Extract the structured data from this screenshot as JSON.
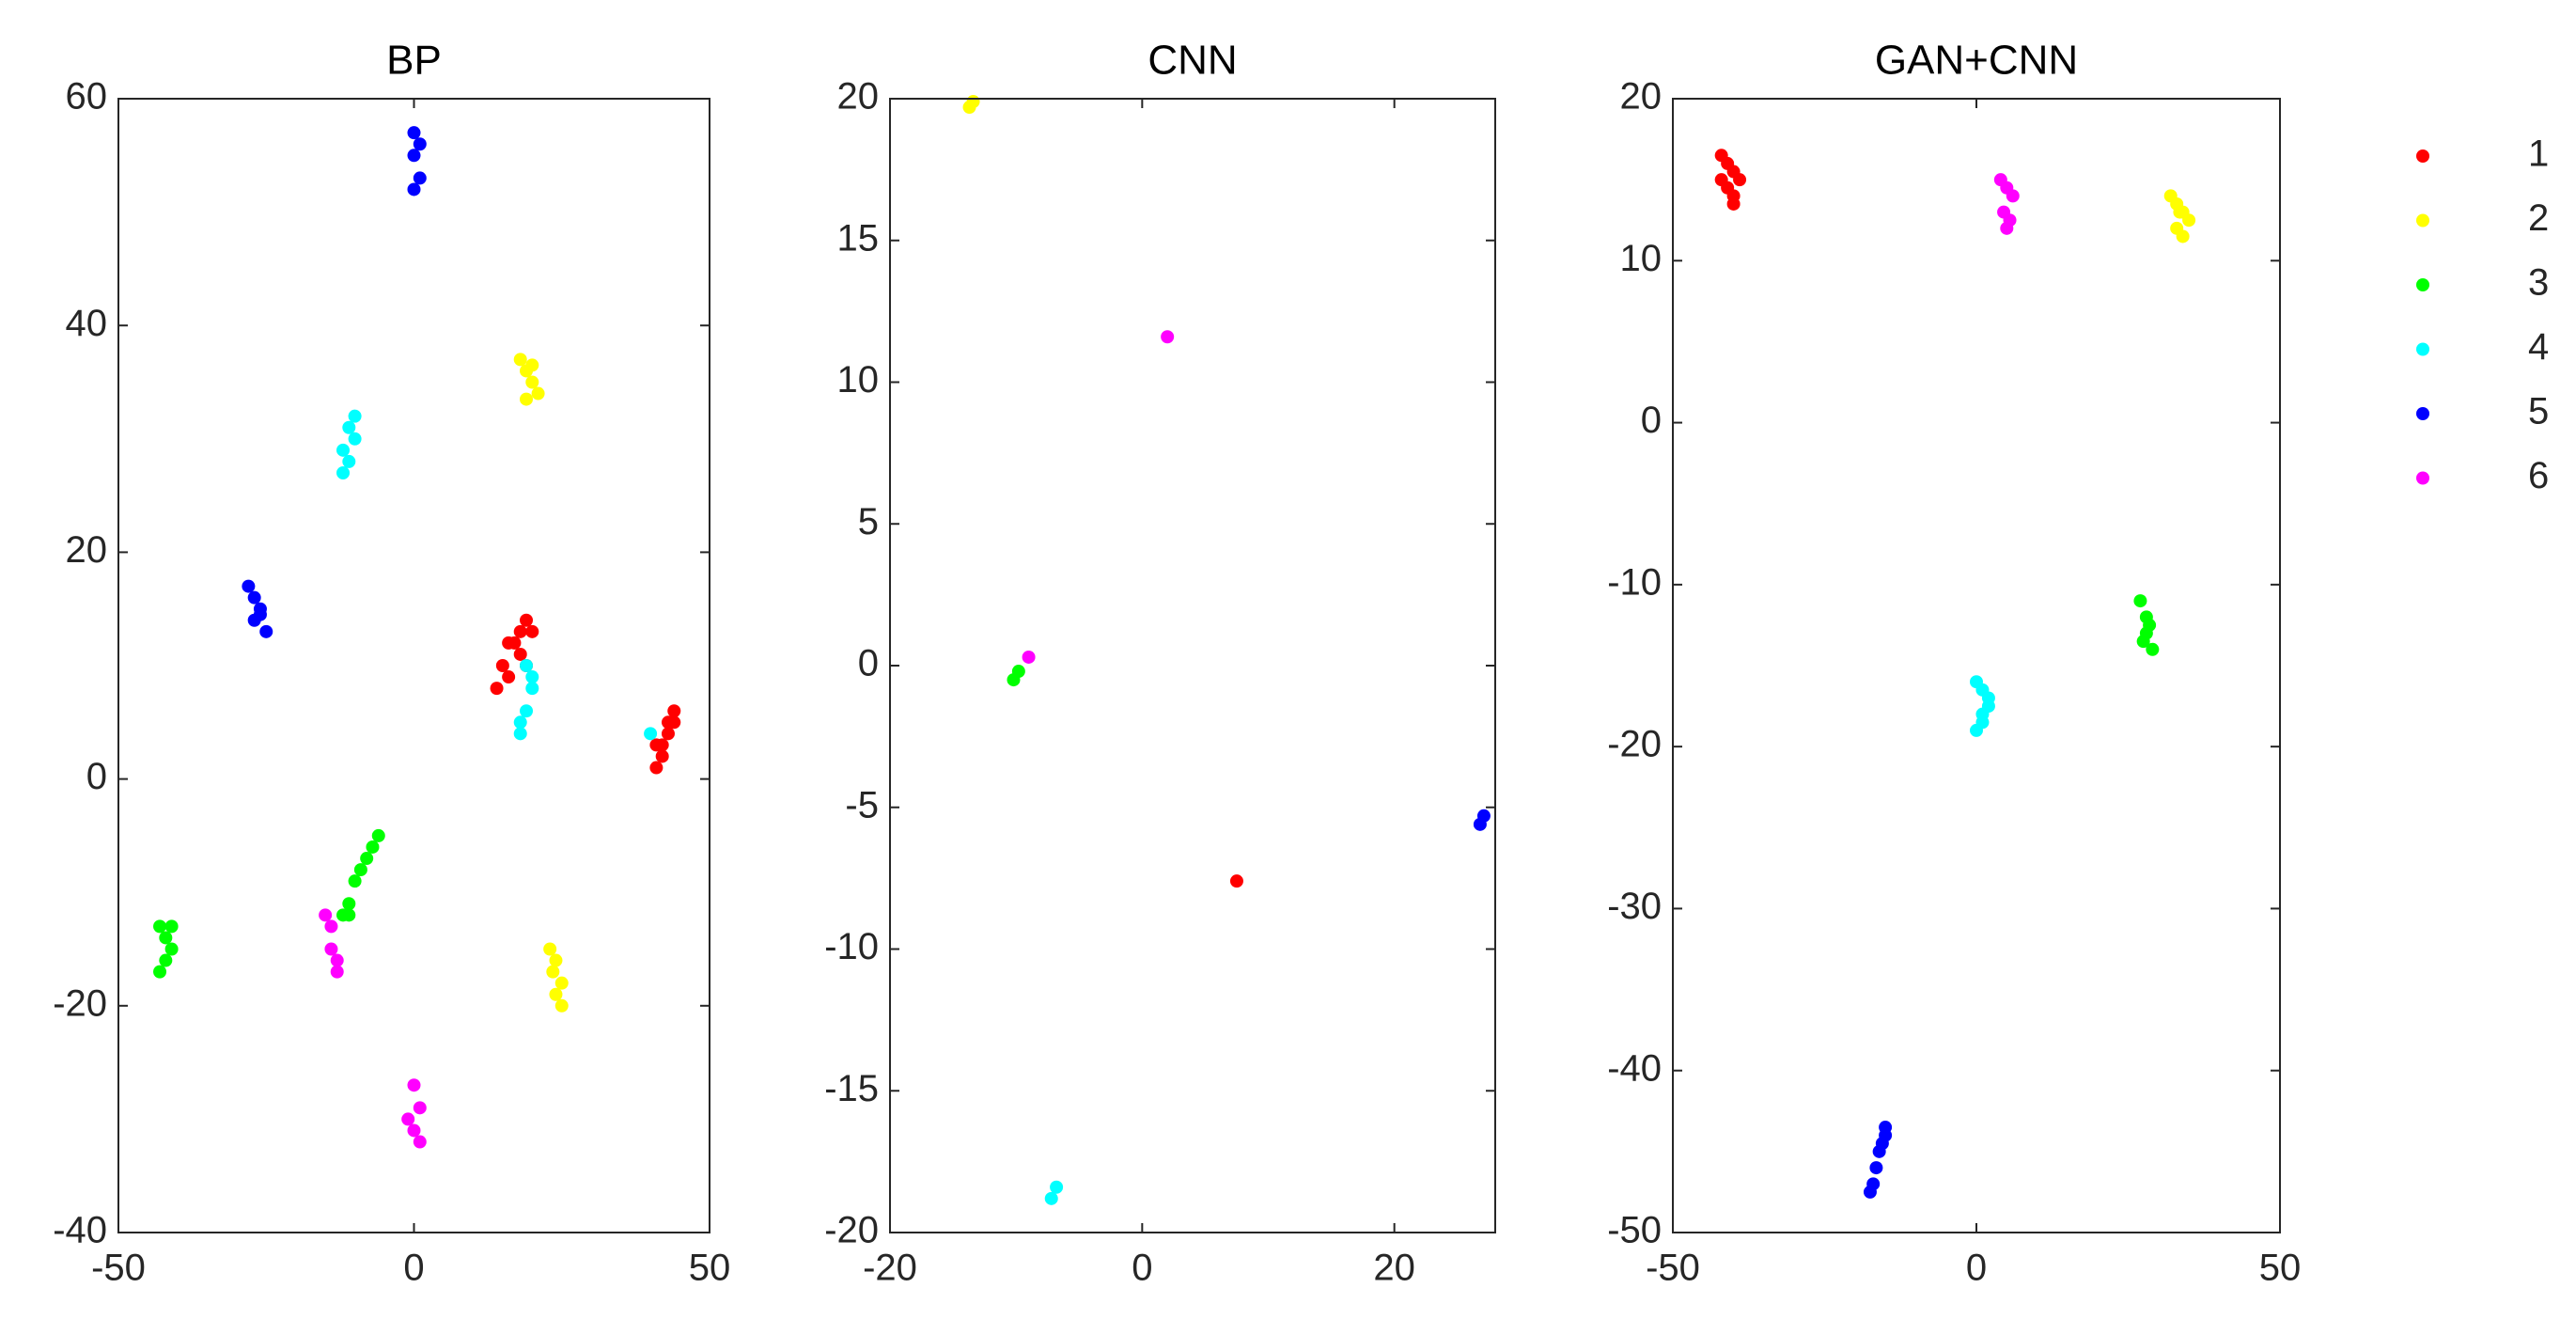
{
  "chart_data": [
    {
      "type": "scatter",
      "title": "BP",
      "xlim": [
        -50,
        50
      ],
      "ylim": [
        -40,
        60
      ],
      "xticks": [
        -50,
        0,
        50
      ],
      "yticks": [
        -40,
        -20,
        0,
        20,
        40,
        60
      ],
      "series": [
        {
          "color": "#ff0000",
          "x": [
            14,
            15,
            16,
            17,
            18,
            19,
            20,
            16,
            18,
            19,
            41,
            42,
            43,
            44,
            42,
            43,
            41,
            44
          ],
          "y": [
            8,
            10,
            12,
            12,
            13,
            14,
            13,
            9,
            11,
            10,
            1,
            3,
            4,
            6,
            2,
            5,
            3,
            5
          ]
        },
        {
          "color": "#ffff00",
          "x": [
            18,
            19,
            20,
            21,
            19,
            20,
            23,
            24,
            25,
            24,
            25,
            23.5
          ],
          "y": [
            37,
            36,
            35,
            34,
            33.5,
            36.5,
            -15,
            -16,
            -18,
            -19,
            -20,
            -17
          ]
        },
        {
          "color": "#00ff00",
          "x": [
            -43,
            -42,
            -41,
            -42,
            -43,
            -41,
            -12,
            -11,
            -10,
            -9,
            -8,
            -7,
            -6,
            -11
          ],
          "y": [
            -13,
            -14,
            -15,
            -16,
            -17,
            -13,
            -12,
            -11,
            -9,
            -8,
            -7,
            -6,
            -5,
            -12
          ]
        },
        {
          "color": "#00ffff",
          "x": [
            -12,
            -11,
            -10,
            -11,
            -10,
            -12,
            18,
            19,
            20,
            19,
            18,
            20,
            40
          ],
          "y": [
            27,
            28,
            30,
            31,
            32,
            29,
            4,
            6,
            8,
            10,
            5,
            9,
            4
          ]
        },
        {
          "color": "#0000ff",
          "x": [
            0,
            1,
            0,
            1,
            0,
            -28,
            -27,
            -26,
            -25,
            -27,
            -26
          ],
          "y": [
            57,
            56,
            55,
            53,
            52,
            17,
            16,
            15,
            13,
            14,
            14.5
          ]
        },
        {
          "color": "#ff00ff",
          "x": [
            -15,
            -14,
            -14,
            -13,
            -13,
            0,
            1,
            0,
            -1,
            1
          ],
          "y": [
            -12,
            -13,
            -15,
            -16,
            -17,
            -27,
            -29,
            -31,
            -30,
            -32
          ]
        }
      ]
    },
    {
      "type": "scatter",
      "title": "CNN",
      "xlim": [
        -20,
        28
      ],
      "ylim": [
        -20,
        20
      ],
      "xticks": [
        -20,
        0,
        20
      ],
      "yticks": [
        -20,
        -15,
        -10,
        -5,
        0,
        5,
        10,
        15,
        20
      ],
      "series": [
        {
          "color": "#ff0000",
          "x": [
            7.5
          ],
          "y": [
            -7.6
          ]
        },
        {
          "color": "#ffff00",
          "x": [
            -13.7,
            -13.4
          ],
          "y": [
            19.7,
            19.9
          ]
        },
        {
          "color": "#00ff00",
          "x": [
            -10.2,
            -9.8
          ],
          "y": [
            -0.5,
            -0.2
          ]
        },
        {
          "color": "#00ffff",
          "x": [
            -7.2,
            -6.8
          ],
          "y": [
            -18.8,
            -18.4
          ]
        },
        {
          "color": "#0000ff",
          "x": [
            26.8,
            27.1
          ],
          "y": [
            -5.6,
            -5.3
          ]
        },
        {
          "color": "#ff00ff",
          "x": [
            2,
            -9
          ],
          "y": [
            11.6,
            0.3
          ]
        }
      ]
    },
    {
      "type": "scatter",
      "title": "GAN+CNN",
      "xlim": [
        -50,
        50
      ],
      "ylim": [
        -50,
        20
      ],
      "xticks": [
        -50,
        0,
        50
      ],
      "yticks": [
        -50,
        -40,
        -30,
        -20,
        -10,
        0,
        10,
        20
      ],
      "series": [
        {
          "name": "1",
          "color": "#ff0000",
          "x": [
            -42,
            -41,
            -40,
            -39,
            -41,
            -40,
            -42,
            -40
          ],
          "y": [
            16.5,
            16,
            15.5,
            15,
            14.5,
            13.5,
            15,
            14
          ]
        },
        {
          "name": "2",
          "color": "#ffff00",
          "x": [
            32,
            33,
            34,
            35,
            33,
            34,
            33.5
          ],
          "y": [
            14,
            13.5,
            13,
            12.5,
            12,
            11.5,
            13
          ]
        },
        {
          "name": "3",
          "color": "#00ff00",
          "x": [
            27,
            28,
            28,
            29,
            27.5,
            28.5
          ],
          "y": [
            -11,
            -12,
            -13,
            -14,
            -13.5,
            -12.5
          ]
        },
        {
          "name": "4",
          "color": "#00ffff",
          "x": [
            0,
            1,
            2,
            1,
            0,
            2,
            1
          ],
          "y": [
            -16,
            -16.5,
            -17,
            -18,
            -19,
            -17.5,
            -18.5
          ]
        },
        {
          "name": "5",
          "color": "#0000ff",
          "x": [
            -17.5,
            -17,
            -16.5,
            -16,
            -15.5,
            -15,
            -15
          ],
          "y": [
            -47.5,
            -47,
            -46,
            -45,
            -44.5,
            -44,
            -43.5
          ]
        },
        {
          "name": "6",
          "color": "#ff00ff",
          "x": [
            4,
            5,
            6,
            4.5,
            5.5,
            5
          ],
          "y": [
            15,
            14.5,
            14,
            13,
            12.5,
            12
          ]
        }
      ]
    }
  ]
}
